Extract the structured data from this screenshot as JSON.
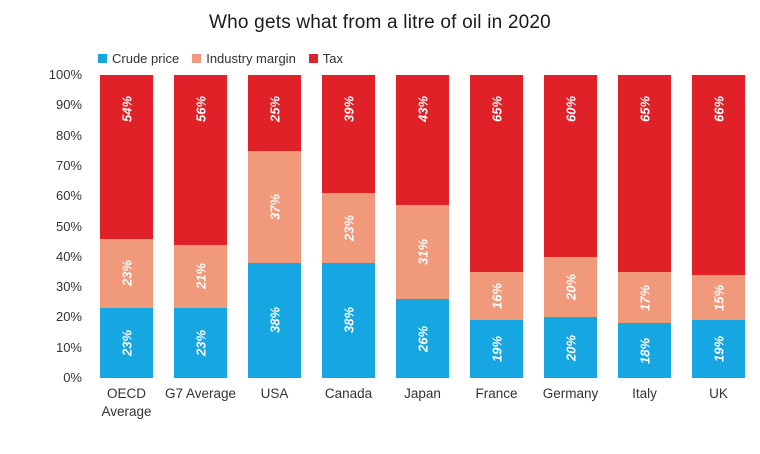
{
  "chart_data": {
    "type": "bar",
    "stacked": true,
    "title": "Who gets what from a litre of oil in 2020",
    "categories": [
      "OECD Average",
      "G7 Average",
      "USA",
      "Canada",
      "Japan",
      "France",
      "Germany",
      "Italy",
      "UK"
    ],
    "series": [
      {
        "name": "Crude price",
        "color": "#16A7E3",
        "values": [
          23,
          23,
          38,
          38,
          26,
          19,
          20,
          18,
          19
        ],
        "label_position": "center"
      },
      {
        "name": "Industry margin",
        "color": "#F0997B",
        "values": [
          23,
          21,
          37,
          23,
          31,
          16,
          20,
          17,
          15
        ],
        "label_position": "center"
      },
      {
        "name": "Tax",
        "color": "#E02127",
        "values": [
          54,
          56,
          25,
          39,
          43,
          65,
          60,
          65,
          66
        ],
        "label_position": "inside-end"
      }
    ],
    "data_label_format": "{v}%",
    "data_label_color": "#ffffff",
    "y_axis": {
      "min": 0,
      "max": 100,
      "ticks": [
        "0%",
        "10%",
        "20%",
        "30%",
        "40%",
        "50%",
        "60%",
        "70%",
        "80%",
        "90%",
        "100%"
      ]
    },
    "legend_position": "top-left",
    "grid": false,
    "xlabel": "",
    "ylabel": ""
  }
}
